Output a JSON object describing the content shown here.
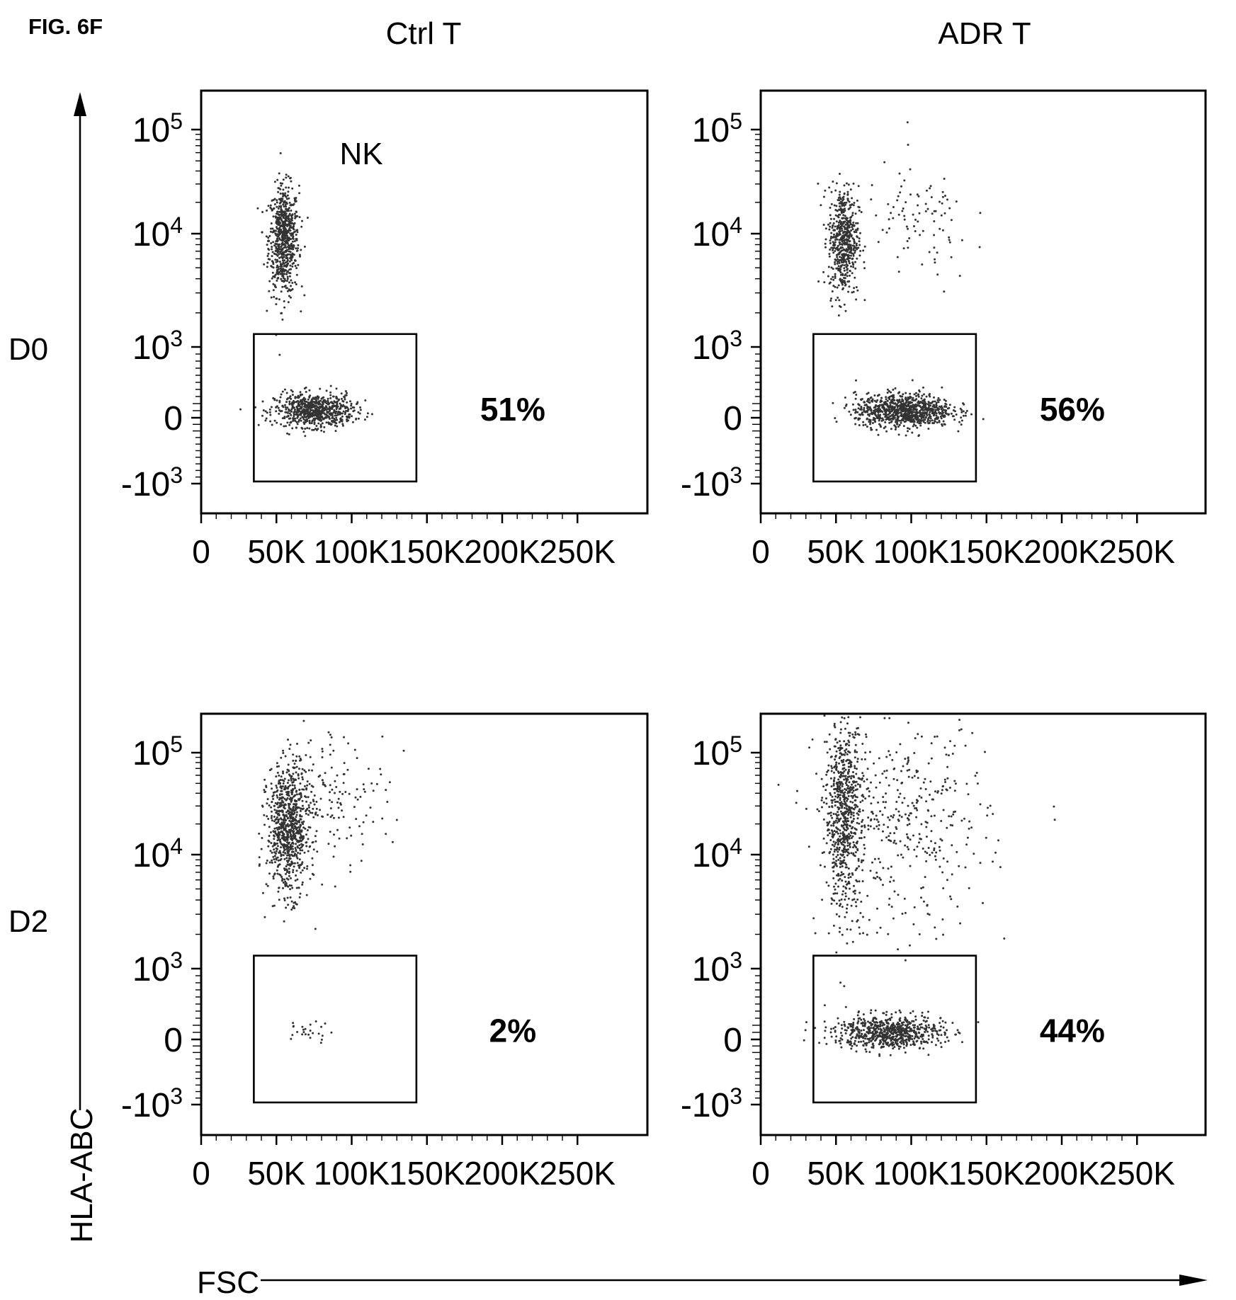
{
  "figure_label": "FIG. 6F",
  "column_titles": [
    "Ctrl T",
    "ADR T"
  ],
  "row_labels": [
    "D0",
    "D2"
  ],
  "y_axis_name": "HLA-ABC",
  "x_axis_name": "FSC",
  "chart_data": [
    {
      "type": "scatter",
      "column": "Ctrl T",
      "row": "D0",
      "annotation": "NK",
      "xlabel": "",
      "ylabel": "",
      "xlim": [
        0,
        262144
      ],
      "ylim": [
        -2000,
        200000
      ],
      "yscale": "biexponential",
      "x_ticks": [
        "0",
        "50K",
        "100K",
        "150K",
        "200K",
        "250K"
      ],
      "y_ticks": [
        "-10^3",
        "0",
        "10^3",
        "10^4",
        "10^5"
      ],
      "gate": {
        "x_range": [
          35000,
          143000
        ],
        "y_range": [
          -1000,
          1300
        ],
        "percent": "51%"
      },
      "populations": [
        {
          "x_center": 55000,
          "y_center": 9000,
          "x_sd": 5000,
          "y_spread_decades": 0.25,
          "points": 700
        },
        {
          "x_center": 75000,
          "y_center": 100,
          "x_sd": 13000,
          "y_sd": 120,
          "points": 700
        }
      ]
    },
    {
      "type": "scatter",
      "column": "ADR T",
      "row": "D0",
      "xlabel": "",
      "ylabel": "",
      "xlim": [
        0,
        262144
      ],
      "ylim": [
        -2000,
        200000
      ],
      "yscale": "biexponential",
      "x_ticks": [
        "0",
        "50K",
        "100K",
        "150K",
        "200K",
        "250K"
      ],
      "y_ticks": [
        "-10^3",
        "0",
        "10^3",
        "10^4",
        "10^5"
      ],
      "gate": {
        "x_range": [
          35000,
          143000
        ],
        "y_range": [
          -1000,
          1300
        ],
        "percent": "56%"
      },
      "populations": [
        {
          "x_center": 55000,
          "y_center": 9000,
          "x_sd": 5000,
          "y_spread_decades": 0.25,
          "points": 550
        },
        {
          "x_center": 95000,
          "y_center": 100,
          "x_sd": 16000,
          "y_sd": 120,
          "points": 900
        },
        {
          "x_center": 105000,
          "y_center": 12000,
          "x_sd": 18000,
          "y_spread_decades": 0.3,
          "points": 90
        }
      ]
    },
    {
      "type": "scatter",
      "column": "Ctrl T",
      "row": "D2",
      "xlabel": "",
      "ylabel": "",
      "xlim": [
        0,
        262144
      ],
      "ylim": [
        -2000,
        200000
      ],
      "yscale": "biexponential",
      "x_ticks": [
        "0",
        "50K",
        "100K",
        "150K",
        "200K",
        "250K"
      ],
      "y_ticks": [
        "-10^3",
        "0",
        "10^3",
        "10^4",
        "10^5"
      ],
      "gate": {
        "x_range": [
          35000,
          143000
        ],
        "y_range": [
          -1000,
          1300
        ],
        "percent": "2%"
      },
      "populations": [
        {
          "x_center": 58000,
          "y_center": 18000,
          "x_sd": 7000,
          "y_spread_decades": 0.3,
          "points": 800
        },
        {
          "x_center": 85000,
          "y_center": 40000,
          "x_sd": 20000,
          "y_spread_decades": 0.3,
          "points": 170
        },
        {
          "x_center": 70000,
          "y_center": 100,
          "x_sd": 8000,
          "y_sd": 80,
          "points": 25
        }
      ]
    },
    {
      "type": "scatter",
      "column": "ADR T",
      "row": "D2",
      "xlabel": "",
      "ylabel": "",
      "xlim": [
        0,
        262144
      ],
      "ylim": [
        -2000,
        200000
      ],
      "yscale": "biexponential",
      "x_ticks": [
        "0",
        "50K",
        "100K",
        "150K",
        "200K",
        "250K"
      ],
      "y_ticks": [
        "-10^3",
        "0",
        "10^3",
        "10^4",
        "10^5"
      ],
      "gate": {
        "x_range": [
          35000,
          143000
        ],
        "y_range": [
          -1000,
          1300
        ],
        "percent": "44%"
      },
      "populations": [
        {
          "x_center": 55000,
          "y_center": 25000,
          "x_sd": 6000,
          "y_spread_decades": 0.45,
          "points": 700
        },
        {
          "x_center": 95000,
          "y_center": 20000,
          "x_sd": 28000,
          "y_spread_decades": 0.5,
          "points": 420
        },
        {
          "x_center": 85000,
          "y_center": 100,
          "x_sd": 18000,
          "y_sd": 120,
          "points": 700
        }
      ]
    }
  ]
}
